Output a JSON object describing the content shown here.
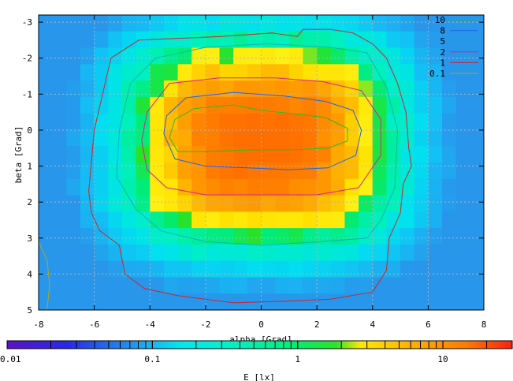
{
  "chart_data": {
    "type": "heatmap",
    "xlabel": "alpha [Grad]",
    "ylabel": "beta [Grad]",
    "xlim": [
      -8,
      8
    ],
    "ylim": [
      -3.2,
      5
    ],
    "x_ticks": [
      "-8",
      "-6",
      "-4",
      "-2",
      "0",
      "2",
      "4",
      "6",
      "8"
    ],
    "y_ticks": [
      "-3",
      "-2",
      "-1",
      "0",
      "1",
      "2",
      "3",
      "4",
      "5"
    ],
    "grid": true,
    "colorbar": {
      "label": "E [lx]",
      "scale": "log",
      "range": [
        0.01,
        30
      ],
      "ticks": [
        "0.01",
        "0.1",
        "1",
        "10"
      ]
    },
    "contour_legend": {
      "placement": "top-right",
      "entries": [
        {
          "label": "10",
          "color": "#22c022"
        },
        {
          "label": "8",
          "color": "#1e64e8"
        },
        {
          "label": "5",
          "color": "#00b8b8"
        },
        {
          "label": "2",
          "color": "#d8208c"
        },
        {
          "label": "1",
          "color": "#c82828"
        },
        {
          "label": "0.1",
          "color": "#a8a82a"
        }
      ]
    },
    "contours": [
      {
        "level": "10",
        "points": [
          [
            -3.3,
            0.2
          ],
          [
            -3.1,
            -0.3
          ],
          [
            -2.4,
            -0.6
          ],
          [
            -1,
            -0.7
          ],
          [
            0,
            -0.55
          ],
          [
            1.2,
            -0.45
          ],
          [
            2.3,
            -0.35
          ],
          [
            3.1,
            -0.05
          ],
          [
            3.1,
            0.3
          ],
          [
            2.4,
            0.5
          ],
          [
            1,
            0.55
          ],
          [
            -0.3,
            0.55
          ],
          [
            -2,
            0.6
          ],
          [
            -3,
            0.6
          ],
          [
            -3.3,
            0.2
          ]
        ]
      },
      {
        "level": "8",
        "points": [
          [
            -3.5,
            0.1
          ],
          [
            -3.4,
            -0.4
          ],
          [
            -2.7,
            -0.9
          ],
          [
            -1,
            -1.05
          ],
          [
            0.8,
            -0.95
          ],
          [
            2.3,
            -0.8
          ],
          [
            3.3,
            -0.55
          ],
          [
            3.6,
            0
          ],
          [
            3.4,
            0.7
          ],
          [
            2.4,
            1.05
          ],
          [
            1,
            1.1
          ],
          [
            -0.5,
            1.05
          ],
          [
            -2,
            1.0
          ],
          [
            -3.1,
            0.8
          ],
          [
            -3.5,
            0.1
          ]
        ]
      },
      {
        "level": "2",
        "points": [
          [
            -4.3,
            0.3
          ],
          [
            -4.1,
            -0.5
          ],
          [
            -3.3,
            -1.3
          ],
          [
            -1.5,
            -1.45
          ],
          [
            0.5,
            -1.45
          ],
          [
            2.2,
            -1.35
          ],
          [
            3.6,
            -1.1
          ],
          [
            4.3,
            -0.3
          ],
          [
            4.3,
            0.7
          ],
          [
            3.5,
            1.6
          ],
          [
            2,
            1.8
          ],
          [
            0,
            1.8
          ],
          [
            -2,
            1.8
          ],
          [
            -3.4,
            1.6
          ],
          [
            -4.1,
            1.1
          ],
          [
            -4.3,
            0.3
          ]
        ]
      },
      {
        "level": "5",
        "points": [
          [
            -5.2,
            1.3
          ],
          [
            -5.1,
            0
          ],
          [
            -4.7,
            -1.3
          ],
          [
            -3.8,
            -2.0
          ],
          [
            -2,
            -2.3
          ],
          [
            0.2,
            -2.4
          ],
          [
            2.5,
            -2.3
          ],
          [
            3.8,
            -2.15
          ],
          [
            4.5,
            -1.2
          ],
          [
            4.9,
            0
          ],
          [
            4.8,
            1.6
          ],
          [
            4.3,
            2.5
          ],
          [
            3.8,
            3.0
          ],
          [
            2.2,
            3.1
          ],
          [
            0,
            3.2
          ],
          [
            -2,
            3.1
          ],
          [
            -3.6,
            2.8
          ],
          [
            -4.5,
            2.2
          ],
          [
            -5.2,
            1.3
          ]
        ]
      },
      {
        "level": "1",
        "points": [
          [
            -6.2,
            1.7
          ],
          [
            -6.0,
            0
          ],
          [
            -5.4,
            -2.0
          ],
          [
            -4.4,
            -2.5
          ],
          [
            -3,
            -2.55
          ],
          [
            -1.5,
            -2.6
          ],
          [
            0.4,
            -2.7
          ],
          [
            1.3,
            -2.6
          ],
          [
            1.5,
            -2.8
          ],
          [
            2.5,
            -2.8
          ],
          [
            3.3,
            -2.7
          ],
          [
            4.0,
            -2.4
          ],
          [
            4.5,
            -2.0
          ],
          [
            4.9,
            -1.3
          ],
          [
            5.2,
            -0.5
          ],
          [
            5.3,
            0.5
          ],
          [
            5.4,
            1.0
          ],
          [
            5.1,
            1.5
          ],
          [
            5.0,
            2.3
          ],
          [
            4.6,
            3.0
          ],
          [
            4.5,
            3.9
          ],
          [
            4.0,
            4.5
          ],
          [
            2.5,
            4.7
          ],
          [
            1,
            4.75
          ],
          [
            -1,
            4.8
          ],
          [
            -3,
            4.6
          ],
          [
            -4.2,
            4.4
          ],
          [
            -4.9,
            4.0
          ],
          [
            -5.1,
            3.2
          ],
          [
            -5.8,
            2.8
          ],
          [
            -6.1,
            2.3
          ],
          [
            -6.2,
            1.7
          ]
        ]
      },
      {
        "level": "0.1",
        "points": [
          [
            -8,
            3.1
          ],
          [
            -7.7,
            3.6
          ],
          [
            -7.6,
            4.3
          ],
          [
            -7.7,
            5.0
          ]
        ]
      }
    ]
  }
}
